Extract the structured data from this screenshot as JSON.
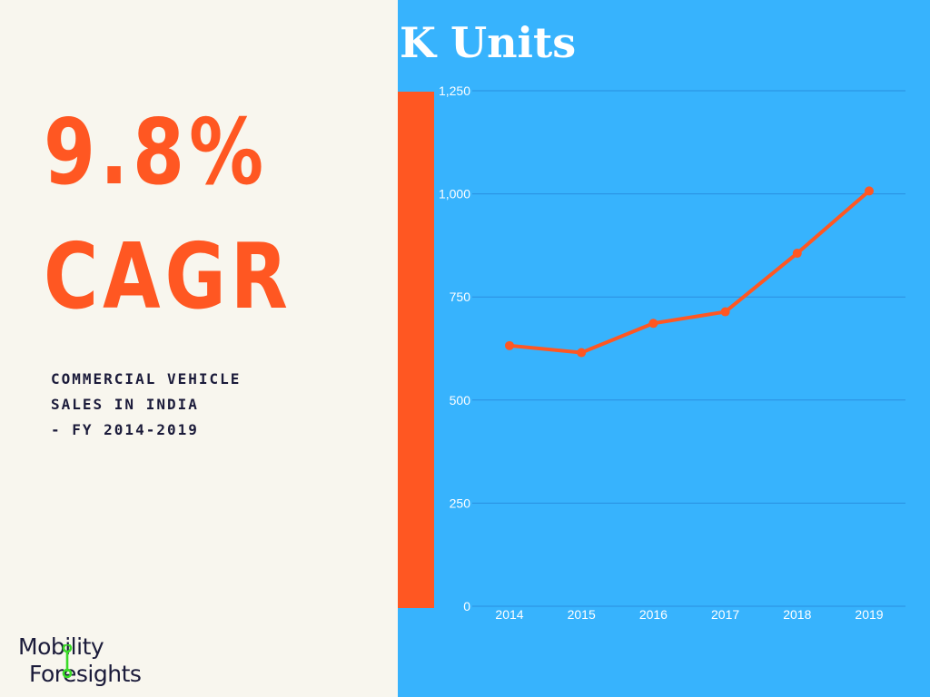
{
  "colors": {
    "left_background": "#f8f6ee",
    "right_background": "#37b3fd",
    "accent": "#ff5722",
    "gridline": "#2a8fe0",
    "text_dark": "#1b1b3a",
    "axis_text": "#ffffff",
    "logo_green": "#3adb27"
  },
  "headline": {
    "value": "9.8%",
    "label": "CAGR",
    "subtitle_lines": [
      "COMMERCIAL VEHICLE",
      "SALES IN INDIA",
      "- FY 2014-2019"
    ]
  },
  "logo": {
    "line1": "Mobility",
    "line2": "Foresights",
    "icon": "green-pin-icon"
  },
  "chart_data": {
    "type": "line",
    "title": "K Units",
    "xlabel": "",
    "ylabel": "",
    "categories": [
      "2014",
      "2015",
      "2016",
      "2017",
      "2018",
      "2019"
    ],
    "series": [
      {
        "values": [
          632,
          615,
          686,
          714,
          856,
          1007
        ]
      }
    ],
    "ylim": [
      0,
      1250
    ],
    "yticks": [
      0,
      250,
      500,
      750,
      1000,
      1250
    ],
    "ytick_labels": [
      "0",
      "250",
      "500",
      "750",
      "1,000",
      "1,250"
    ],
    "grid": true,
    "legend": "none"
  }
}
